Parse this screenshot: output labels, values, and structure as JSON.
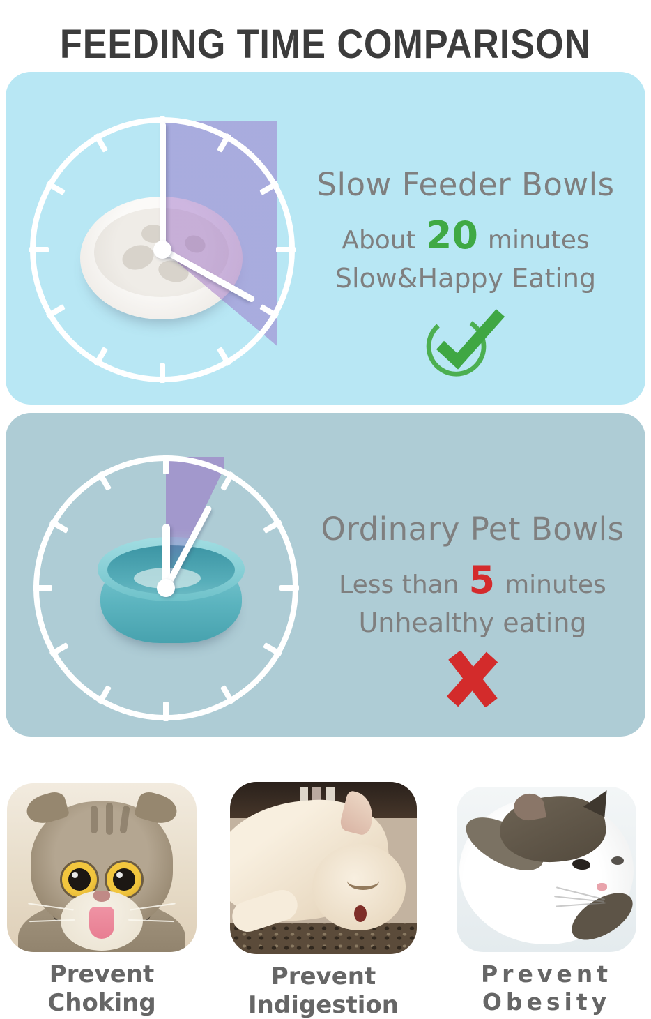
{
  "title": "FEEDING TIME COMPARISON",
  "colors": {
    "panel1_bg": "#b8e7f4",
    "panel2_bg": "#aeccd5",
    "accent_green": "#3fa944",
    "accent_red": "#d42a2c",
    "wedge_purple": "#9664c3",
    "heading_gray": "#7f7f7f",
    "caption_gray": "#666666",
    "title_color": "#3c3c3c"
  },
  "panels": [
    {
      "heading": "Slow Feeder Bowls",
      "time_prefix": "About",
      "time_value": "20",
      "time_unit": "minutes",
      "note": "Slow&Happy Eating",
      "verdict": "check",
      "clock_minutes": 20
    },
    {
      "heading": "Ordinary Pet Bowls",
      "time_prefix": "Less than",
      "time_value": "5",
      "time_unit": "minutes",
      "note": "Unhealthy eating",
      "verdict": "cross",
      "clock_minutes": 5
    }
  ],
  "benefits": [
    {
      "caption_line1": "Prevent",
      "caption_line2": "Choking",
      "photo": "cat-tongue-out"
    },
    {
      "caption_line1": "Prevent",
      "caption_line2": "Indigestion",
      "photo": "sleeping-cat"
    },
    {
      "caption_line1": "Prevent",
      "caption_line2": "Obesity",
      "photo": "fat-cat"
    }
  ]
}
